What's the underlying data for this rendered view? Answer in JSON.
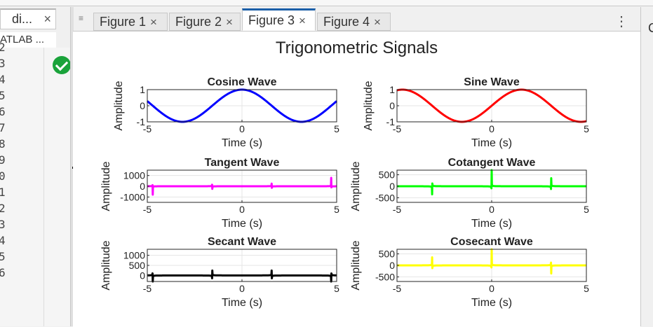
{
  "editor": {
    "tab_label": "di...",
    "close_glyph": "×",
    "subheader": "ATLAB ...",
    "line_numbers": [
      "2",
      "3",
      "4",
      "5",
      "6",
      "7",
      "8",
      "9",
      "0",
      "1",
      "2",
      "3",
      "4",
      "5",
      "6"
    ],
    "status_icon": "check-circle-icon",
    "status_color": "#1aa33b"
  },
  "figure_tabs": [
    {
      "label": "Figure 1",
      "active": false
    },
    {
      "label": "Figure 2",
      "active": false
    },
    {
      "label": "Figure 3",
      "active": true
    },
    {
      "label": "Figure 4",
      "active": false
    }
  ],
  "menu_glyph": "⋮",
  "right_panel_letter": "C",
  "figure": {
    "title": "Trigonometric Signals"
  },
  "chart_data": [
    {
      "type": "line",
      "title": "Cosine Wave",
      "xlabel": "Time (s)",
      "ylabel": "Amplitude",
      "function": "cos",
      "color": "#0000ff",
      "xlim": [
        -5,
        5
      ],
      "ylim": [
        -1,
        1
      ],
      "xticks": [
        "-5",
        "0",
        "5"
      ],
      "yticks": [
        "-1",
        "0",
        "1"
      ],
      "x": [
        -5,
        -4,
        -3,
        -2,
        -1,
        0,
        1,
        2,
        3,
        4,
        5
      ],
      "y": [
        0.28,
        -0.65,
        -0.99,
        -0.42,
        0.54,
        1,
        0.54,
        -0.42,
        -0.99,
        -0.65,
        0.28
      ]
    },
    {
      "type": "line",
      "title": "Sine Wave",
      "xlabel": "Time (s)",
      "ylabel": "Amplitude",
      "function": "sin",
      "color": "#ff0000",
      "xlim": [
        -5,
        5
      ],
      "ylim": [
        -1,
        1
      ],
      "xticks": [
        "-5",
        "0",
        "5"
      ],
      "yticks": [
        "-1",
        "0",
        "1"
      ],
      "x": [
        -5,
        -4,
        -3,
        -2,
        -1,
        0,
        1,
        2,
        3,
        4,
        5
      ],
      "y": [
        0.96,
        0.76,
        -0.14,
        -0.91,
        -0.84,
        0,
        0.84,
        0.91,
        0.14,
        -0.76,
        -0.96
      ]
    },
    {
      "type": "line",
      "title": "Tangent Wave",
      "xlabel": "Time (s)",
      "ylabel": "Amplitude",
      "function": "tan",
      "color": "#ff00ff",
      "xlim": [
        -5,
        5
      ],
      "ylim": [
        -1500,
        1500
      ],
      "xticks": [
        "-5",
        "0",
        "5"
      ],
      "yticks": [
        "-1000",
        "0",
        "1000"
      ]
    },
    {
      "type": "line",
      "title": "Cotangent Wave",
      "xlabel": "Time (s)",
      "ylabel": "Amplitude",
      "function": "cot",
      "color": "#00ff00",
      "xlim": [
        -5,
        5
      ],
      "ylim": [
        -700,
        700
      ],
      "xticks": [
        "-5",
        "0",
        "5"
      ],
      "yticks": [
        "-500",
        "0",
        "500"
      ]
    },
    {
      "type": "line",
      "title": "Secant Wave",
      "xlabel": "Time (s)",
      "ylabel": "Amplitude",
      "function": "sec",
      "color": "#000000",
      "xlim": [
        -5,
        5
      ],
      "ylim": [
        -300,
        1300
      ],
      "xticks": [
        "-5",
        "0",
        "5"
      ],
      "yticks": [
        "0",
        "500",
        "1000"
      ]
    },
    {
      "type": "line",
      "title": "Cosecant Wave",
      "xlabel": "Time (s)",
      "ylabel": "Amplitude",
      "function": "csc",
      "color": "#ffff00",
      "xlim": [
        -5,
        5
      ],
      "ylim": [
        -700,
        700
      ],
      "xticks": [
        "-5",
        "0",
        "5"
      ],
      "yticks": [
        "-500",
        "0",
        "500"
      ]
    }
  ]
}
